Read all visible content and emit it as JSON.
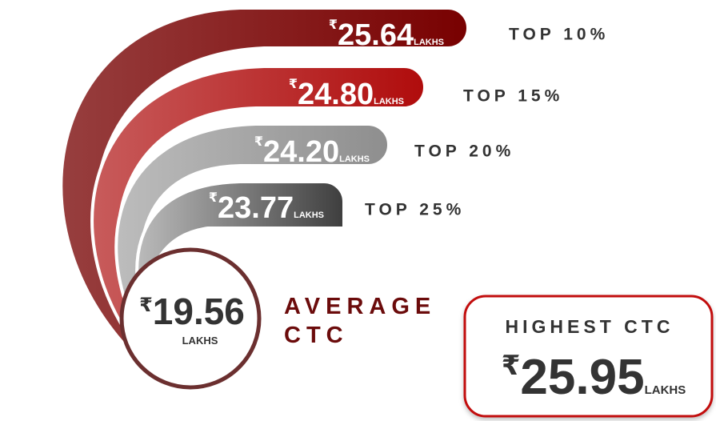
{
  "tiers": [
    {
      "currency": "₹",
      "value": "25.64",
      "unit": "LAKHS",
      "label": "TOP 10%"
    },
    {
      "currency": "₹",
      "value": "24.80",
      "unit": "LAKHS",
      "label": "TOP 15%"
    },
    {
      "currency": "₹",
      "value": "24.20",
      "unit": "LAKHS",
      "label": "TOP 20%"
    },
    {
      "currency": "₹",
      "value": "23.77",
      "unit": "LAKHS",
      "label": "TOP 25%"
    }
  ],
  "average": {
    "currency": "₹",
    "value": "19.56",
    "unit": "LAKHS",
    "label_lines": [
      "AVERAGE",
      "CTC"
    ]
  },
  "highest": {
    "title": "HIGHEST CTC",
    "currency": "₹",
    "value": "25.95",
    "unit": "LAKHS"
  }
}
